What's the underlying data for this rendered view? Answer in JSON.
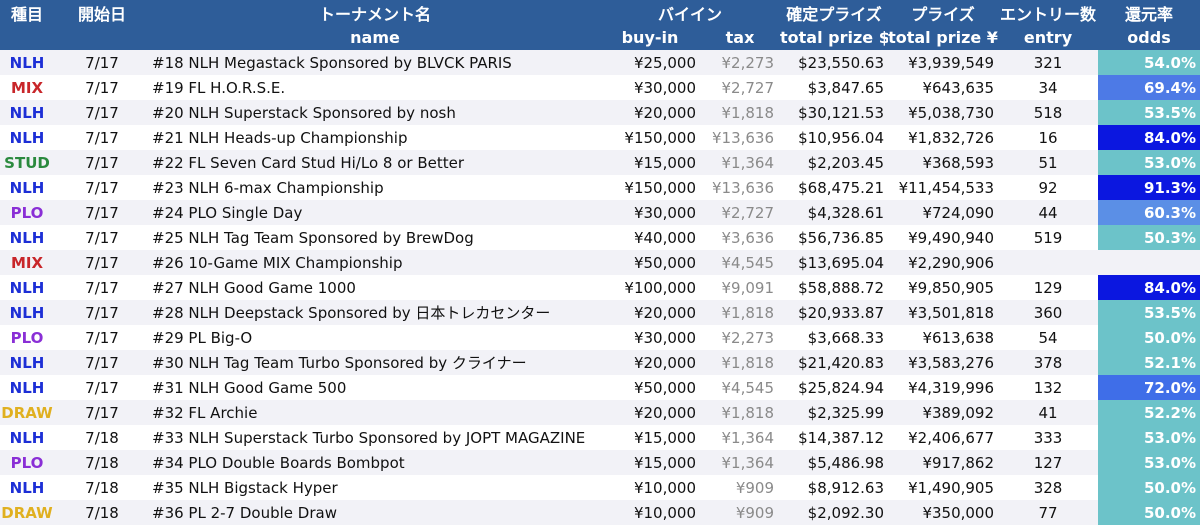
{
  "header": {
    "row1": {
      "type": "種目",
      "date": "開始日",
      "name": "トーナメント名",
      "buyin": "バイイン",
      "guarantee": "確定プライズ",
      "prize": "プライズ",
      "entries": "エントリー数",
      "return_rate": "還元率"
    },
    "row2": {
      "name": "name",
      "buyin": "buy-in",
      "tax": "tax",
      "guarantee": "total prize $",
      "prize": "total prize ¥",
      "entries": "entry",
      "return_rate": "odds"
    }
  },
  "colors": {
    "header_bg": "#2e5d99",
    "NLH": "#1d2fd6",
    "MIX": "#c8262a",
    "STUD": "#2b8a3e",
    "PLO": "#8a2fd6",
    "DRAW": "#e0b020"
  },
  "rows": [
    {
      "type": "NLH",
      "date": "7/17",
      "name": "#18 NLH Megastack Sponsored by BLVCK PARIS",
      "buyin": "¥25,000",
      "tax": "¥2,273",
      "guarantee": "$23,550.63",
      "prize": "¥3,939,549",
      "entries": "321",
      "odds": "54.0%",
      "odds_bg": "#6cc3c9",
      "odds_fg": "#ffffff"
    },
    {
      "type": "MIX",
      "date": "7/17",
      "name": "#19 FL H.O.R.S.E.",
      "buyin": "¥30,000",
      "tax": "¥2,727",
      "guarantee": "$3,847.65",
      "prize": "¥643,635",
      "entries": "34",
      "odds": "69.4%",
      "odds_bg": "#4d7ae6",
      "odds_fg": "#ffffff"
    },
    {
      "type": "NLH",
      "date": "7/17",
      "name": "#20 NLH Superstack Sponsored by nosh",
      "buyin": "¥20,000",
      "tax": "¥1,818",
      "guarantee": "$30,121.53",
      "prize": "¥5,038,730",
      "entries": "518",
      "odds": "53.5%",
      "odds_bg": "#6cc3c9",
      "odds_fg": "#ffffff"
    },
    {
      "type": "NLH",
      "date": "7/17",
      "name": "#21 NLH Heads-up Championship",
      "buyin": "¥150,000",
      "tax": "¥13,636",
      "guarantee": "$10,956.04",
      "prize": "¥1,832,726",
      "entries": "16",
      "odds": "84.0%",
      "odds_bg": "#0b17e0",
      "odds_fg": "#ffffff"
    },
    {
      "type": "STUD",
      "date": "7/17",
      "name": "#22 FL Seven Card Stud Hi/Lo 8 or Better",
      "buyin": "¥15,000",
      "tax": "¥1,364",
      "guarantee": "$2,203.45",
      "prize": "¥368,593",
      "entries": "51",
      "odds": "53.0%",
      "odds_bg": "#6cc3c9",
      "odds_fg": "#ffffff"
    },
    {
      "type": "NLH",
      "date": "7/17",
      "name": "#23 NLH 6-max Championship",
      "buyin": "¥150,000",
      "tax": "¥13,636",
      "guarantee": "$68,475.21",
      "prize": "¥11,454,533",
      "entries": "92",
      "odds": "91.3%",
      "odds_bg": "#0b17e0",
      "odds_fg": "#ffffff"
    },
    {
      "type": "PLO",
      "date": "7/17",
      "name": "#24 PLO Single Day",
      "buyin": "¥30,000",
      "tax": "¥2,727",
      "guarantee": "$4,328.61",
      "prize": "¥724,090",
      "entries": "44",
      "odds": "60.3%",
      "odds_bg": "#5b8fe6",
      "odds_fg": "#ffffff"
    },
    {
      "type": "NLH",
      "date": "7/17",
      "name": "#25 NLH Tag Team Sponsored by BrewDog",
      "buyin": "¥40,000",
      "tax": "¥3,636",
      "guarantee": "$56,736.85",
      "prize": "¥9,490,940",
      "entries": "519",
      "odds": "50.3%",
      "odds_bg": "#6cc3c9",
      "odds_fg": "#ffffff"
    },
    {
      "type": "MIX",
      "date": "7/17",
      "name": "#26 10-Game MIX Championship",
      "buyin": "¥50,000",
      "tax": "¥4,545",
      "guarantee": "$13,695.04",
      "prize": "¥2,290,906",
      "entries": "",
      "odds": "",
      "odds_bg": "",
      "odds_fg": "#ffffff"
    },
    {
      "type": "NLH",
      "date": "7/17",
      "name": "#27 NLH Good Game 1000",
      "buyin": "¥100,000",
      "tax": "¥9,091",
      "guarantee": "$58,888.72",
      "prize": "¥9,850,905",
      "entries": "129",
      "odds": "84.0%",
      "odds_bg": "#0b17e0",
      "odds_fg": "#ffffff"
    },
    {
      "type": "NLH",
      "date": "7/17",
      "name": "#28 NLH Deepstack Sponsored by 日本トレカセンター",
      "buyin": "¥20,000",
      "tax": "¥1,818",
      "guarantee": "$20,933.87",
      "prize": "¥3,501,818",
      "entries": "360",
      "odds": "53.5%",
      "odds_bg": "#6cc3c9",
      "odds_fg": "#ffffff"
    },
    {
      "type": "PLO",
      "date": "7/17",
      "name": "#29 PL Big-O",
      "buyin": "¥30,000",
      "tax": "¥2,273",
      "guarantee": "$3,668.33",
      "prize": "¥613,638",
      "entries": "54",
      "odds": "50.0%",
      "odds_bg": "#6cc3c9",
      "odds_fg": "#ffffff"
    },
    {
      "type": "NLH",
      "date": "7/17",
      "name": "#30 NLH Tag Team Turbo Sponsored by クライナー",
      "buyin": "¥20,000",
      "tax": "¥1,818",
      "guarantee": "$21,420.83",
      "prize": "¥3,583,276",
      "entries": "378",
      "odds": "52.1%",
      "odds_bg": "#6cc3c9",
      "odds_fg": "#ffffff"
    },
    {
      "type": "NLH",
      "date": "7/17",
      "name": "#31 NLH Good Game 500",
      "buyin": "¥50,000",
      "tax": "¥4,545",
      "guarantee": "$25,824.94",
      "prize": "¥4,319,996",
      "entries": "132",
      "odds": "72.0%",
      "odds_bg": "#3f6ee8",
      "odds_fg": "#ffffff"
    },
    {
      "type": "DRAW",
      "date": "7/17",
      "name": "#32 FL Archie",
      "buyin": "¥20,000",
      "tax": "¥1,818",
      "guarantee": "$2,325.99",
      "prize": "¥389,092",
      "entries": "41",
      "odds": "52.2%",
      "odds_bg": "#6cc3c9",
      "odds_fg": "#ffffff"
    },
    {
      "type": "NLH",
      "date": "7/18",
      "name": "#33 NLH Superstack Turbo Sponsored by JOPT MAGAZINE",
      "buyin": "¥15,000",
      "tax": "¥1,364",
      "guarantee": "$14,387.12",
      "prize": "¥2,406,677",
      "entries": "333",
      "odds": "53.0%",
      "odds_bg": "#6cc3c9",
      "odds_fg": "#ffffff"
    },
    {
      "type": "PLO",
      "date": "7/18",
      "name": "#34 PLO Double Boards Bombpot",
      "buyin": "¥15,000",
      "tax": "¥1,364",
      "guarantee": "$5,486.98",
      "prize": "¥917,862",
      "entries": "127",
      "odds": "53.0%",
      "odds_bg": "#6cc3c9",
      "odds_fg": "#ffffff"
    },
    {
      "type": "NLH",
      "date": "7/18",
      "name": "#35 NLH Bigstack Hyper",
      "buyin": "¥10,000",
      "tax": "¥909",
      "guarantee": "$8,912.63",
      "prize": "¥1,490,905",
      "entries": "328",
      "odds": "50.0%",
      "odds_bg": "#6cc3c9",
      "odds_fg": "#ffffff"
    },
    {
      "type": "DRAW",
      "date": "7/18",
      "name": "#36 PL 2-7 Double Draw",
      "buyin": "¥10,000",
      "tax": "¥909",
      "guarantee": "$2,092.30",
      "prize": "¥350,000",
      "entries": "77",
      "odds": "50.0%",
      "odds_bg": "#6cc3c9",
      "odds_fg": "#ffffff"
    }
  ]
}
